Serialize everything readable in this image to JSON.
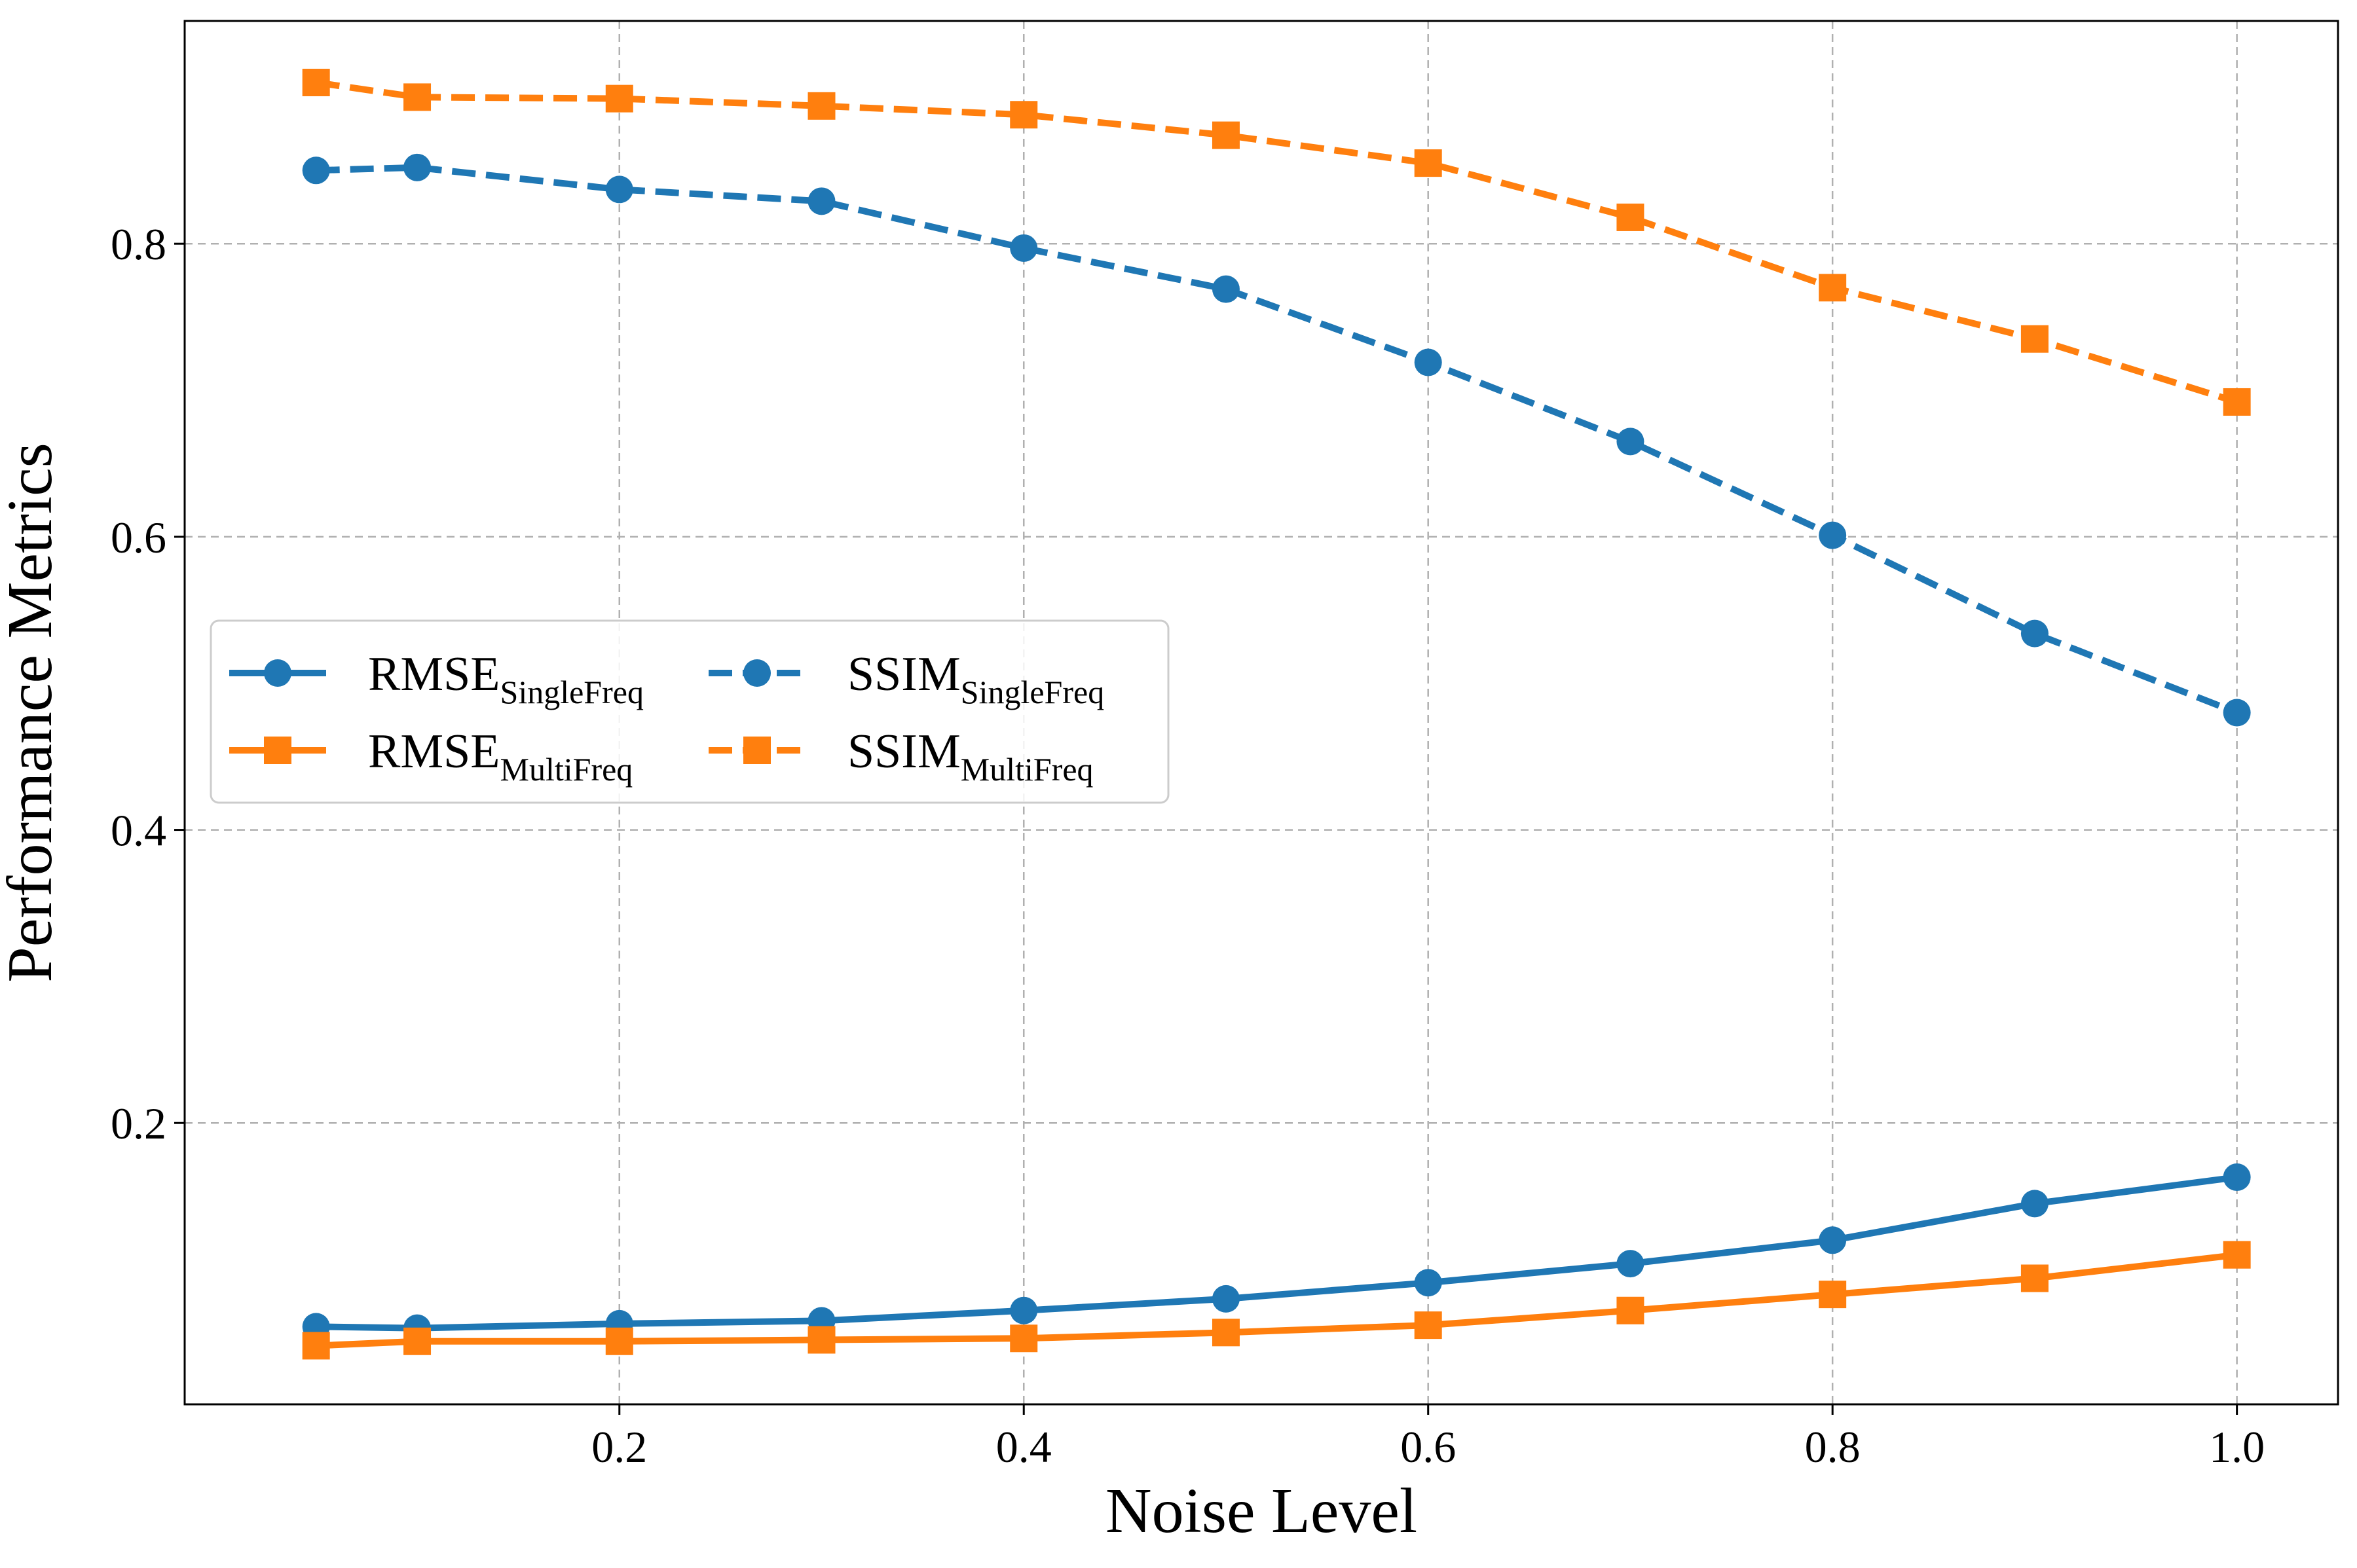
{
  "chart_data": {
    "type": "line",
    "title": "",
    "xlabel": "Noise Level",
    "ylabel": "Performance Metrics",
    "xlim": [
      -0.015,
      1.05
    ],
    "ylim": [
      0.008,
      0.952
    ],
    "xticks": [
      0.2,
      0.4,
      0.6,
      0.8,
      1.0
    ],
    "xtick_labels": [
      "0.2",
      "0.4",
      "0.6",
      "0.8",
      "1.0"
    ],
    "yticks": [
      0.2,
      0.4,
      0.6,
      0.8
    ],
    "ytick_labels": [
      "0.2",
      "0.4",
      "0.6",
      "0.8"
    ],
    "grid": true,
    "legend_position": "center-left",
    "x": [
      0.05,
      0.1,
      0.2,
      0.3,
      0.4,
      0.5,
      0.6,
      0.7,
      0.8,
      0.9,
      1.0
    ],
    "series": [
      {
        "name": "RMSE",
        "sub": "SingleFreq",
        "color": "#1f77b4",
        "marker": "circle",
        "linestyle": "solid",
        "values": [
          0.061,
          0.06,
          0.063,
          0.065,
          0.072,
          0.08,
          0.091,
          0.104,
          0.12,
          0.145,
          0.163
        ]
      },
      {
        "name": "SSIM",
        "sub": "SingleFreq",
        "color": "#1f77b4",
        "marker": "circle",
        "linestyle": "dashed",
        "values": [
          0.85,
          0.852,
          0.837,
          0.829,
          0.797,
          0.769,
          0.719,
          0.665,
          0.601,
          0.534,
          0.48
        ]
      },
      {
        "name": "RMSE",
        "sub": "MultiFreq",
        "color": "#ff7f0e",
        "marker": "square",
        "linestyle": "solid",
        "values": [
          0.048,
          0.051,
          0.051,
          0.052,
          0.053,
          0.057,
          0.062,
          0.072,
          0.083,
          0.094,
          0.11
        ]
      },
      {
        "name": "SSIM",
        "sub": "MultiFreq",
        "color": "#ff7f0e",
        "marker": "square",
        "linestyle": "dashed",
        "values": [
          0.91,
          0.9,
          0.899,
          0.894,
          0.888,
          0.874,
          0.855,
          0.818,
          0.77,
          0.735,
          0.692
        ]
      }
    ]
  }
}
